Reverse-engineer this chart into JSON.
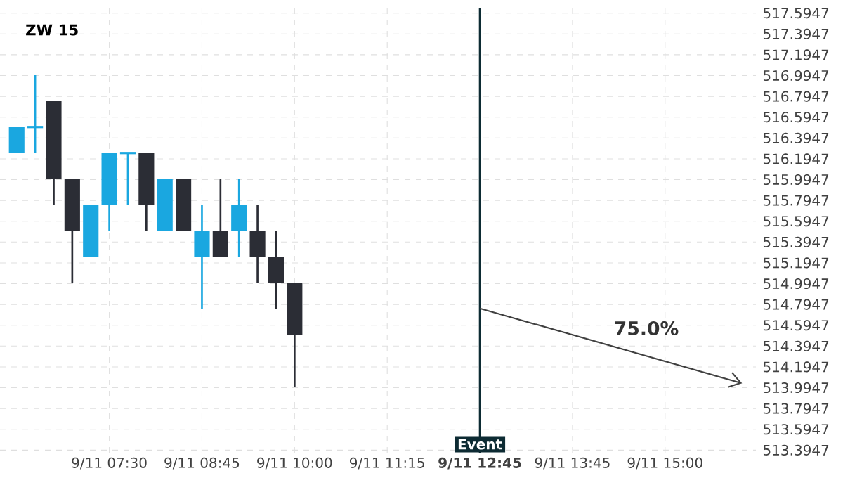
{
  "chart_data": {
    "type": "candlestick",
    "title": "ZW 15",
    "categories": [
      null,
      null,
      null,
      null,
      null,
      "9/11 07:30",
      null,
      null,
      null,
      null,
      "9/11 08:45",
      null,
      null,
      null,
      null,
      "9/11 10:00",
      null,
      null,
      null,
      null,
      "9/11 11:15",
      null,
      null,
      null,
      null,
      "9/11 12:45",
      null,
      null,
      null,
      null,
      "9/11 13:45",
      null,
      null,
      null,
      null,
      "9/11 15:00",
      null,
      null,
      null,
      null
    ],
    "ohlc": [
      [
        516.25,
        516.5,
        516.25,
        516.5
      ],
      [
        516.5,
        517.0,
        516.25,
        516.5
      ],
      [
        516.75,
        516.75,
        515.75,
        516.0
      ],
      [
        516.0,
        516.0,
        515.0,
        515.5
      ],
      [
        515.25,
        515.75,
        515.25,
        515.75
      ],
      [
        515.75,
        516.25,
        515.5,
        516.25
      ],
      [
        516.25,
        516.25,
        515.75,
        516.25
      ],
      [
        516.25,
        516.25,
        515.5,
        515.75
      ],
      [
        515.5,
        516.0,
        515.5,
        516.0
      ],
      [
        516.0,
        516.0,
        515.5,
        515.5
      ],
      [
        515.25,
        515.75,
        514.75,
        515.5
      ],
      [
        515.5,
        516.0,
        515.25,
        515.25
      ],
      [
        515.5,
        516.0,
        515.25,
        515.75
      ],
      [
        515.5,
        515.75,
        515.0,
        515.25
      ],
      [
        515.25,
        515.5,
        514.75,
        515.0
      ],
      [
        515.0,
        515.0,
        514.0,
        514.5
      ],
      null,
      null,
      null,
      null,
      null,
      null,
      null,
      null,
      null,
      null,
      null,
      null,
      null,
      null,
      null,
      null,
      null,
      null,
      null,
      null,
      null,
      null,
      null,
      null
    ],
    "colors": [
      "#1aa7e0",
      "#1aa7e0",
      "#2b2d35",
      "#2b2d35",
      "#1aa7e0",
      "#1aa7e0",
      "#1aa7e0",
      "#2b2d35",
      "#1aa7e0",
      "#2b2d35",
      "#1aa7e0",
      "#2b2d35",
      "#1aa7e0",
      "#2b2d35",
      "#2b2d35",
      "#2b2d35",
      null,
      null,
      null,
      null,
      null,
      null,
      null,
      null,
      null,
      null,
      null,
      null,
      null,
      null,
      null,
      null,
      null,
      null,
      null,
      null,
      null,
      null,
      null,
      null
    ],
    "ref_lines": [
      {
        "axis": "x",
        "value": "9/11 12:45",
        "label": "Event",
        "color": "#0d2b33"
      }
    ],
    "annotations": [
      "75.0%"
    ],
    "ylim": [
      513.37,
      517.64
    ],
    "yticks": [
      513.3947,
      513.5947,
      513.7947,
      513.9947,
      514.1947,
      514.3947,
      514.5947,
      514.7947,
      514.9947,
      515.1947,
      515.3947,
      515.5947,
      515.7947,
      515.9947,
      516.1947,
      516.3947,
      516.5947,
      516.7947,
      516.9947,
      517.1947,
      517.3947,
      517.5947
    ],
    "grid": true
  }
}
